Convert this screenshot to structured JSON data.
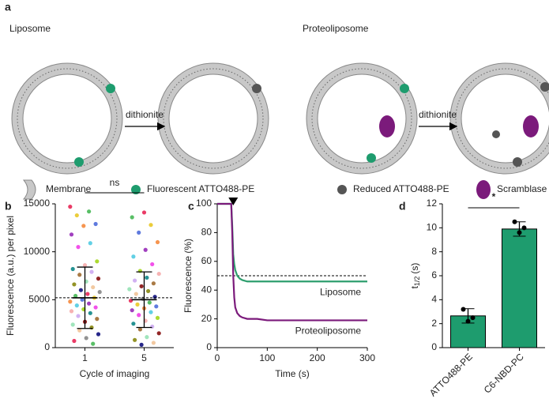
{
  "panel_labels": [
    "a",
    "b",
    "c",
    "d"
  ],
  "diagram": {
    "titles": [
      "Liposome",
      "Proteoliposome"
    ],
    "arrow_labels": [
      "dithionite",
      "dithionite"
    ],
    "legend": [
      "Membrane",
      "Fluorescent ATTO488-PE",
      "Reduced ATTO488-PE",
      "Scramblase"
    ]
  },
  "chart_data": [
    {
      "type": "scatter",
      "x_label": "Cycle of imaging",
      "y_label": "Fluorescence (a.u.) per pixel",
      "categories": [
        "1",
        "5"
      ],
      "groups": [
        [
          14700,
          14200,
          13800,
          12900,
          12700,
          11800,
          10900,
          10500,
          9000,
          8600,
          8200,
          7900,
          7600,
          7200,
          6900,
          6600,
          6300,
          6000,
          5800,
          5600,
          5400,
          5200,
          5000,
          4800,
          4600,
          4400,
          4200,
          4000,
          3800,
          3600,
          3300,
          3000,
          2700,
          2400,
          2100,
          1800,
          1400,
          1000,
          700,
          400
        ],
        [
          14100,
          13600,
          12800,
          12000,
          11000,
          10200,
          9500,
          8700,
          8000,
          7700,
          7300,
          7000,
          6700,
          6400,
          6100,
          5900,
          5600,
          5300,
          5100,
          4900,
          4700,
          4500,
          4300,
          4100,
          3900,
          3700,
          3400,
          3100,
          2800,
          2500,
          2200,
          1900,
          1500,
          1100,
          800,
          500,
          300
        ]
      ],
      "point_colors": [
        "#e6194b",
        "#3cb44b",
        "#e8c419",
        "#4363d8",
        "#f58231",
        "#911eb4",
        "#46c8e0",
        "#f032e6",
        "#9ed40c",
        "#f4a6a6",
        "#008080",
        "#c9a3f0",
        "#9a6324",
        "#800000",
        "#8fe0b0",
        "#808000",
        "#f0c090",
        "#000075",
        "#808080"
      ],
      "means": [
        5200,
        5000
      ],
      "errors": [
        3200,
        2900
      ],
      "reference_line": 5200,
      "annotation": "ns",
      "ylim": [
        0,
        15000
      ],
      "yticks": [
        0,
        5000,
        10000,
        15000
      ]
    },
    {
      "type": "line",
      "x_label": "Time (s)",
      "y_label": "Fluorescence (%)",
      "x": [
        0,
        10,
        20,
        28,
        30,
        32,
        34,
        36,
        40,
        45,
        50,
        60,
        80,
        100,
        150,
        200,
        250,
        300
      ],
      "series": [
        {
          "name": "Liposome",
          "color": "#2e9e6e",
          "values": [
            100,
            100,
            100,
            100,
            85,
            65,
            58,
            54,
            50,
            48,
            47,
            46,
            46,
            46,
            46,
            46,
            46,
            46
          ]
        },
        {
          "name": "Proteoliposome",
          "color": "#7b1a7b",
          "values": [
            100,
            100,
            100,
            100,
            80,
            50,
            35,
            28,
            24,
            22,
            21,
            20,
            20,
            19,
            19,
            19,
            19,
            19
          ]
        }
      ],
      "reference_line": 50,
      "marker_x": 32,
      "xlim": [
        0,
        300
      ],
      "xticks": [
        0,
        100,
        200,
        300
      ],
      "ylim": [
        0,
        100
      ],
      "yticks": [
        0,
        20,
        40,
        60,
        80,
        100
      ]
    },
    {
      "type": "bar",
      "y_label": {
        "main": "t",
        "sub": "1/2",
        "unit": "(s)"
      },
      "categories": [
        "ATTO488-PE",
        "C6-NBD-PC"
      ],
      "values": [
        2.65,
        9.9
      ],
      "errors": [
        0.6,
        0.6
      ],
      "points": [
        [
          3.2,
          2.2,
          2.5
        ],
        [
          10.5,
          9.6,
          10.0
        ]
      ],
      "color": "#1e9c6e",
      "annotation": "*",
      "ylim": [
        0,
        12
      ],
      "yticks": [
        0,
        2,
        4,
        6,
        8,
        10,
        12
      ]
    }
  ]
}
